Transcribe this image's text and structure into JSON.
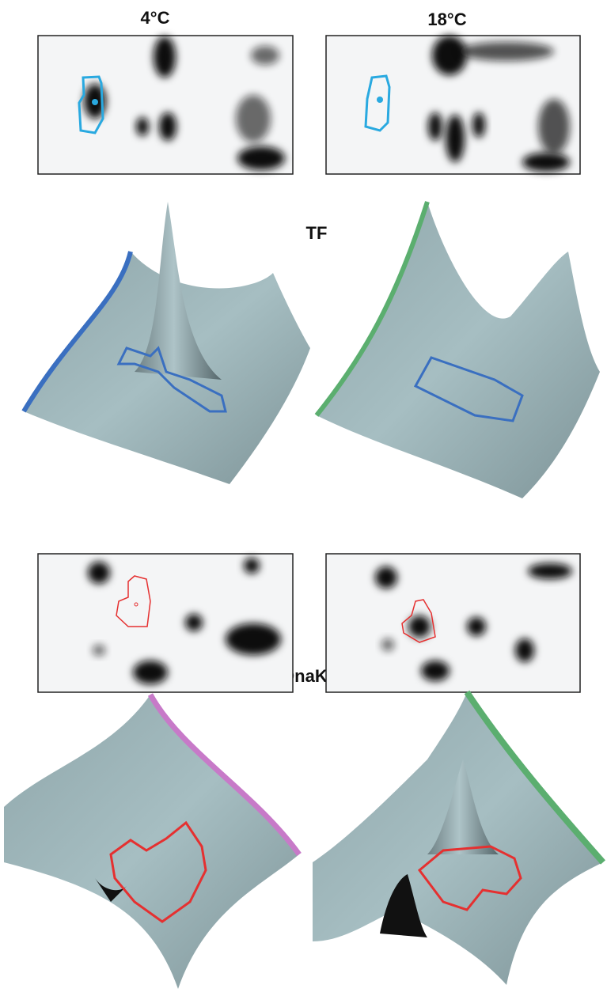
{
  "columns": [
    "4°C",
    "18°C"
  ],
  "panels": [
    {
      "label": "TF"
    },
    {
      "label": "DnaK"
    }
  ]
}
